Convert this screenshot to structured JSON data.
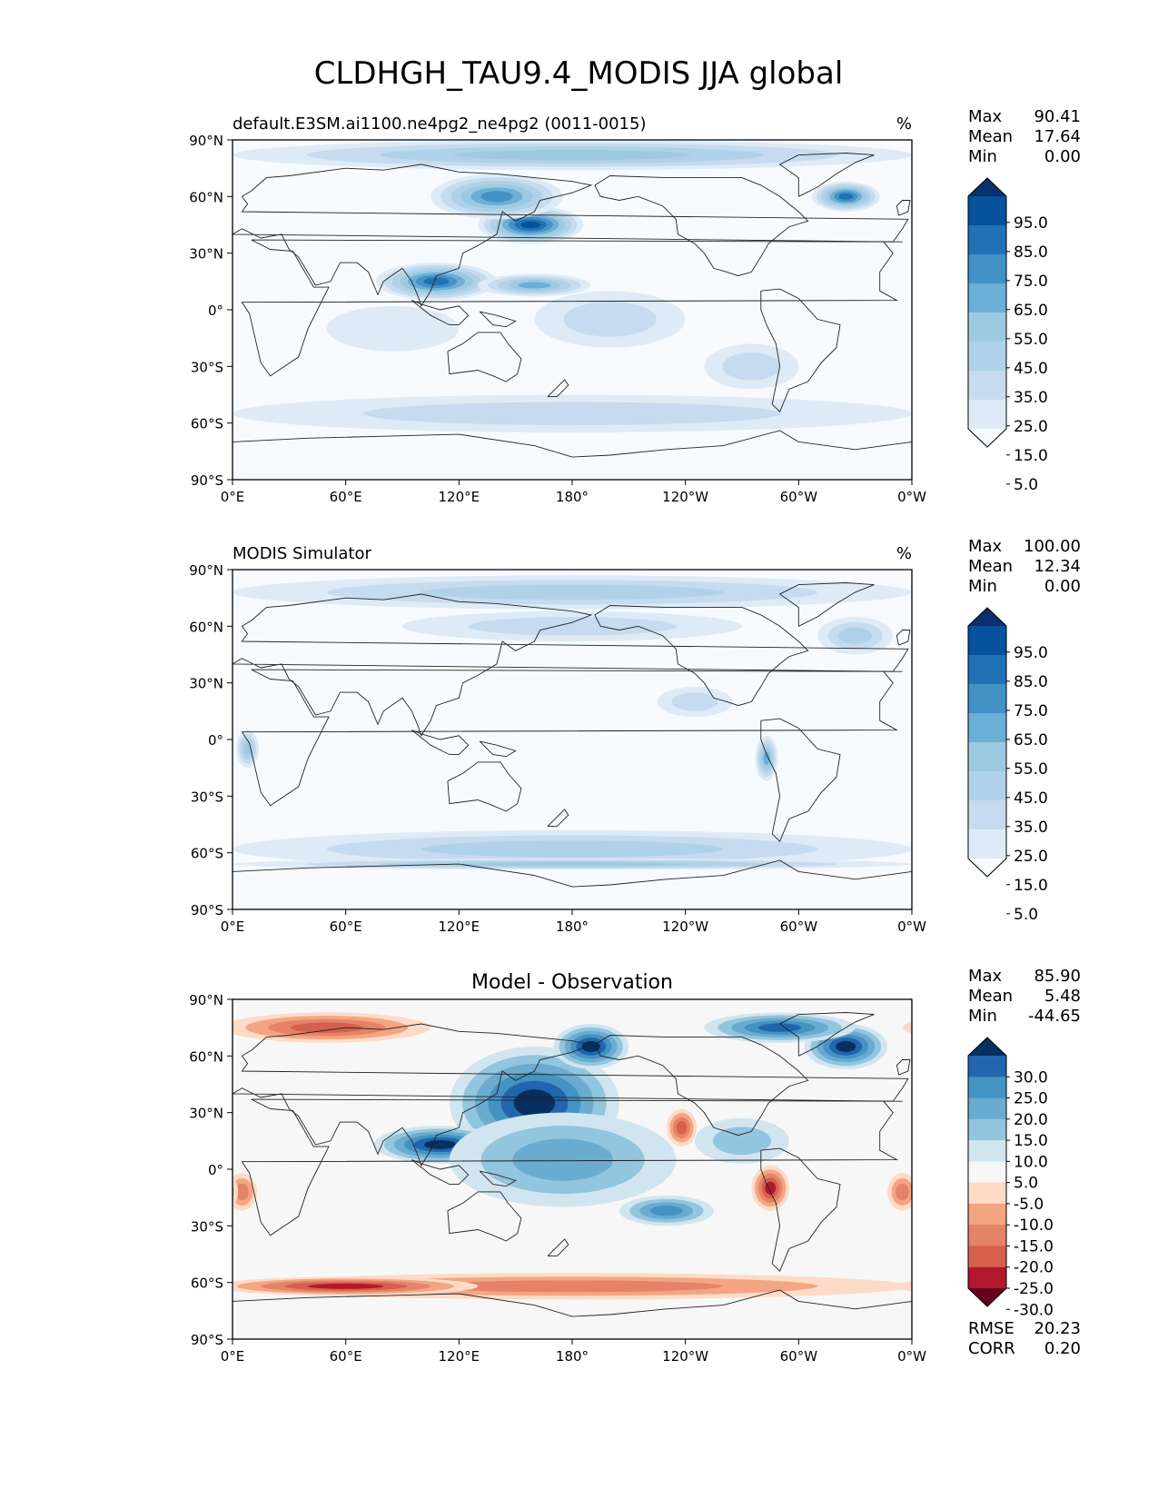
{
  "title": "CLDHGH_TAU9.4_MODIS JJA global",
  "colors": {
    "seq": [
      "#f7fbff",
      "#deebf7",
      "#c6dbef",
      "#b0d2e8",
      "#9ecae1",
      "#6baed6",
      "#4292c6",
      "#2171b5",
      "#08519c",
      "#08306b"
    ],
    "div": [
      "#67001f",
      "#b2182b",
      "#d6604d",
      "#e58368",
      "#f4a582",
      "#fddbc7",
      "#f7f7f7",
      "#d1e5f0",
      "#92c5de",
      "#6aacd0",
      "#4393c3",
      "#2166ac",
      "#053061"
    ],
    "coast": "#222222"
  },
  "lat_ticks": [
    "90°N",
    "60°N",
    "30°N",
    "0°",
    "30°S",
    "60°S",
    "90°S"
  ],
  "lon_ticks": [
    "0°E",
    "60°E",
    "120°E",
    "180°",
    "120°W",
    "60°W",
    "0°W"
  ],
  "panels": [
    {
      "id": "model",
      "left_title": "default.E3SM.ai1100.ne4pg2_ne4pg2 (0011-0015)",
      "center_title": "",
      "units": "%",
      "stats": [
        {
          "label": "Max",
          "value": "90.41"
        },
        {
          "label": "Mean",
          "value": "17.64"
        },
        {
          "label": "Min",
          "value": "0.00"
        }
      ],
      "colorbar": {
        "palette": "seq",
        "labels": [
          "95.0",
          "85.0",
          "75.0",
          "65.0",
          "55.0",
          "45.0",
          "35.0",
          "25.0",
          "15.0",
          "5.0"
        ]
      },
      "field": {
        "base": 0,
        "blobs": [
          {
            "lon": 158,
            "lat": 45,
            "rx": 28,
            "ry": 10,
            "level": 8
          },
          {
            "lon": 140,
            "lat": 60,
            "rx": 35,
            "ry": 12,
            "level": 6
          },
          {
            "lon": 108,
            "lat": 15,
            "rx": 32,
            "ry": 10,
            "level": 7
          },
          {
            "lon": 160,
            "lat": 13,
            "rx": 30,
            "ry": 6,
            "level": 5
          },
          {
            "lon": 325,
            "lat": 60,
            "rx": 18,
            "ry": 8,
            "level": 7
          },
          {
            "lon": 180,
            "lat": 82,
            "rx": 180,
            "ry": 8,
            "level": 4
          },
          {
            "lon": 180,
            "lat": -55,
            "rx": 180,
            "ry": 10,
            "level": 2
          },
          {
            "lon": 200,
            "lat": -5,
            "rx": 40,
            "ry": 15,
            "level": 2
          },
          {
            "lon": 85,
            "lat": -10,
            "rx": 35,
            "ry": 12,
            "level": 1
          },
          {
            "lon": 275,
            "lat": -30,
            "rx": 25,
            "ry": 12,
            "level": 2
          }
        ]
      }
    },
    {
      "id": "obs",
      "left_title": "MODIS Simulator",
      "center_title": "",
      "units": "%",
      "stats": [
        {
          "label": "Max",
          "value": "100.00"
        },
        {
          "label": "Mean",
          "value": "12.34"
        },
        {
          "label": "Min",
          "value": "0.00"
        }
      ],
      "colorbar": {
        "palette": "seq",
        "labels": [
          "95.0",
          "85.0",
          "75.0",
          "65.0",
          "55.0",
          "45.0",
          "35.0",
          "25.0",
          "15.0",
          "5.0"
        ]
      },
      "field": {
        "base": 0,
        "blobs": [
          {
            "lon": 180,
            "lat": 78,
            "rx": 180,
            "ry": 9,
            "level": 3
          },
          {
            "lon": 180,
            "lat": 60,
            "rx": 90,
            "ry": 8,
            "level": 2
          },
          {
            "lon": 180,
            "lat": -58,
            "rx": 180,
            "ry": 10,
            "level": 3
          },
          {
            "lon": 180,
            "lat": -66,
            "rx": 180,
            "ry": 3,
            "level": 4
          },
          {
            "lon": 283,
            "lat": -10,
            "rx": 6,
            "ry": 12,
            "level": 5
          },
          {
            "lon": 8,
            "lat": -5,
            "rx": 6,
            "ry": 10,
            "level": 4
          },
          {
            "lon": 245,
            "lat": 20,
            "rx": 20,
            "ry": 8,
            "level": 2
          },
          {
            "lon": 330,
            "lat": 55,
            "rx": 20,
            "ry": 10,
            "level": 3
          }
        ]
      }
    },
    {
      "id": "diff",
      "left_title": "",
      "center_title": "Model - Observation",
      "units": "",
      "stats": [
        {
          "label": "Max",
          "value": "85.90"
        },
        {
          "label": "Mean",
          "value": "5.48"
        },
        {
          "label": "Min",
          "value": "-44.65"
        }
      ],
      "colorbar": {
        "palette": "div",
        "labels": [
          "30.0",
          "25.0",
          "20.0",
          "15.0",
          "10.0",
          "5.0",
          "-5.0",
          "-10.0",
          "-15.0",
          "-20.0",
          "-25.0",
          "-30.0"
        ]
      },
      "extra_stats": [
        {
          "label": "RMSE",
          "value": "20.23"
        },
        {
          "label": "CORR",
          "value": "0.20"
        }
      ],
      "field": {
        "base": 6,
        "blobs": [
          {
            "lon": 160,
            "lat": 35,
            "rx": 45,
            "ry": 30,
            "level": 12
          },
          {
            "lon": 110,
            "lat": 13,
            "rx": 35,
            "ry": 10,
            "level": 12
          },
          {
            "lon": 190,
            "lat": 65,
            "rx": 20,
            "ry": 12,
            "level": 12
          },
          {
            "lon": 325,
            "lat": 65,
            "rx": 22,
            "ry": 12,
            "level": 12
          },
          {
            "lon": 290,
            "lat": 75,
            "rx": 40,
            "ry": 8,
            "level": 11
          },
          {
            "lon": 230,
            "lat": -22,
            "rx": 25,
            "ry": 8,
            "level": 10
          },
          {
            "lon": 175,
            "lat": 5,
            "rx": 60,
            "ry": 25,
            "level": 9
          },
          {
            "lon": 270,
            "lat": 15,
            "rx": 25,
            "ry": 12,
            "level": 8
          },
          {
            "lon": 50,
            "lat": 75,
            "rx": 55,
            "ry": 8,
            "level": 2
          },
          {
            "lon": 180,
            "lat": -62,
            "rx": 180,
            "ry": 7,
            "level": 3
          },
          {
            "lon": 60,
            "lat": -62,
            "rx": 70,
            "ry": 5,
            "level": 1
          },
          {
            "lon": 285,
            "lat": -10,
            "rx": 10,
            "ry": 12,
            "level": 1
          },
          {
            "lon": 238,
            "lat": 22,
            "rx": 8,
            "ry": 10,
            "level": 2
          },
          {
            "lon": 5,
            "lat": -12,
            "rx": 8,
            "ry": 10,
            "level": 3
          },
          {
            "lon": 355,
            "lat": -12,
            "rx": 8,
            "ry": 10,
            "level": 3
          }
        ]
      }
    }
  ]
}
